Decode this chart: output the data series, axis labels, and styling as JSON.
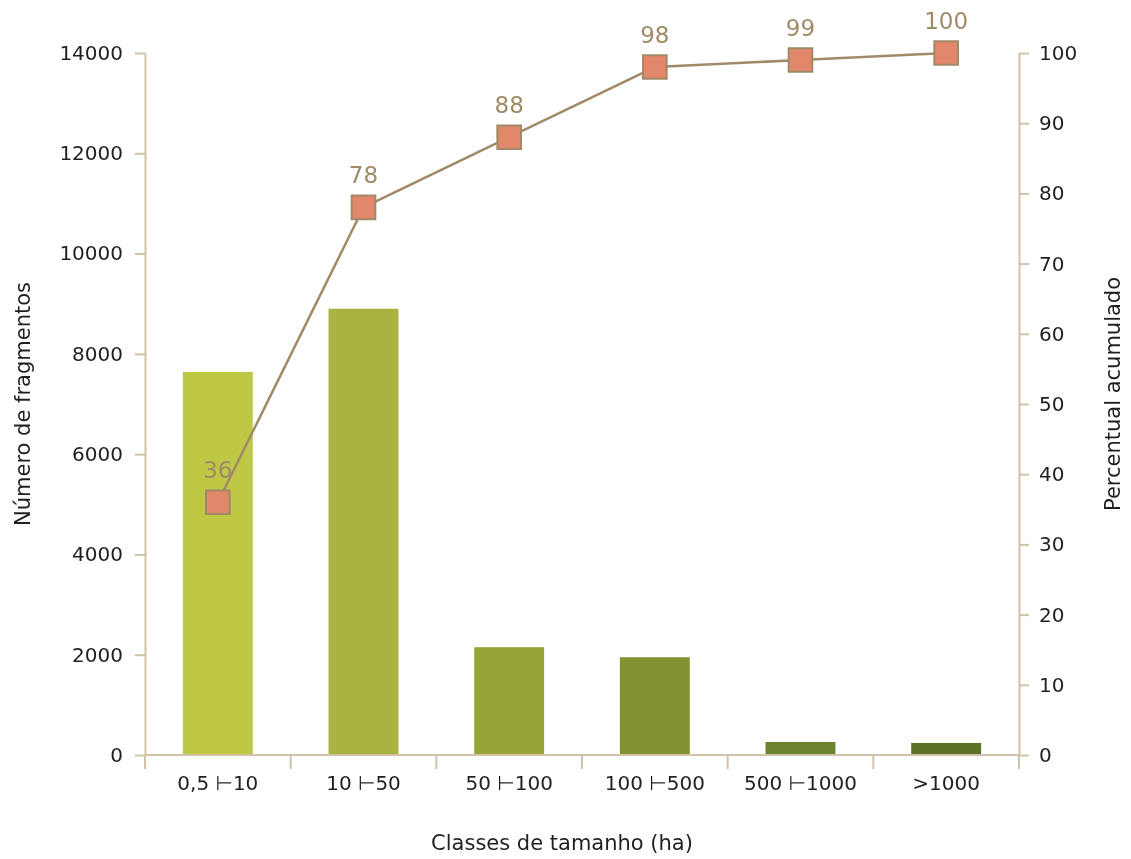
{
  "chart_data": {
    "type": "bar",
    "xlabel": "Classes de tamanho (ha)",
    "ylabel": "Número de fragmentos",
    "y2label": "Percentual acumulado",
    "categories": [
      "0,5 ⊢10",
      "10 ⊢50",
      "50 ⊢100",
      "100 ⊢500",
      "500 ⊢1000",
      ">1000"
    ],
    "series": [
      {
        "values": [
          7640,
          8900,
          2150,
          1950,
          260,
          240
        ],
        "colors": [
          "#bec845",
          "#a8b43f",
          "#97a43a",
          "#829333",
          "#6d832e",
          "#5c7228"
        ]
      },
      {
        "type": "line",
        "axis": "y2",
        "color": "#a08a68",
        "colors": [
          "#e3876a",
          "#e3876a",
          "#e3876a",
          "#e3876a",
          "#e3876a",
          "#e3876a"
        ],
        "marker": "square",
        "data_labels": true,
        "values": [
          36,
          78,
          88,
          98,
          99,
          100
        ]
      }
    ],
    "ylim": [
      0,
      14000
    ],
    "yticks": [
      0,
      2000,
      4000,
      6000,
      8000,
      10000,
      12000,
      14000
    ],
    "y2lim": [
      0,
      100
    ],
    "y2ticks": [
      0,
      10,
      20,
      30,
      40,
      50,
      60,
      70,
      80,
      90,
      100
    ],
    "grid": false
  }
}
